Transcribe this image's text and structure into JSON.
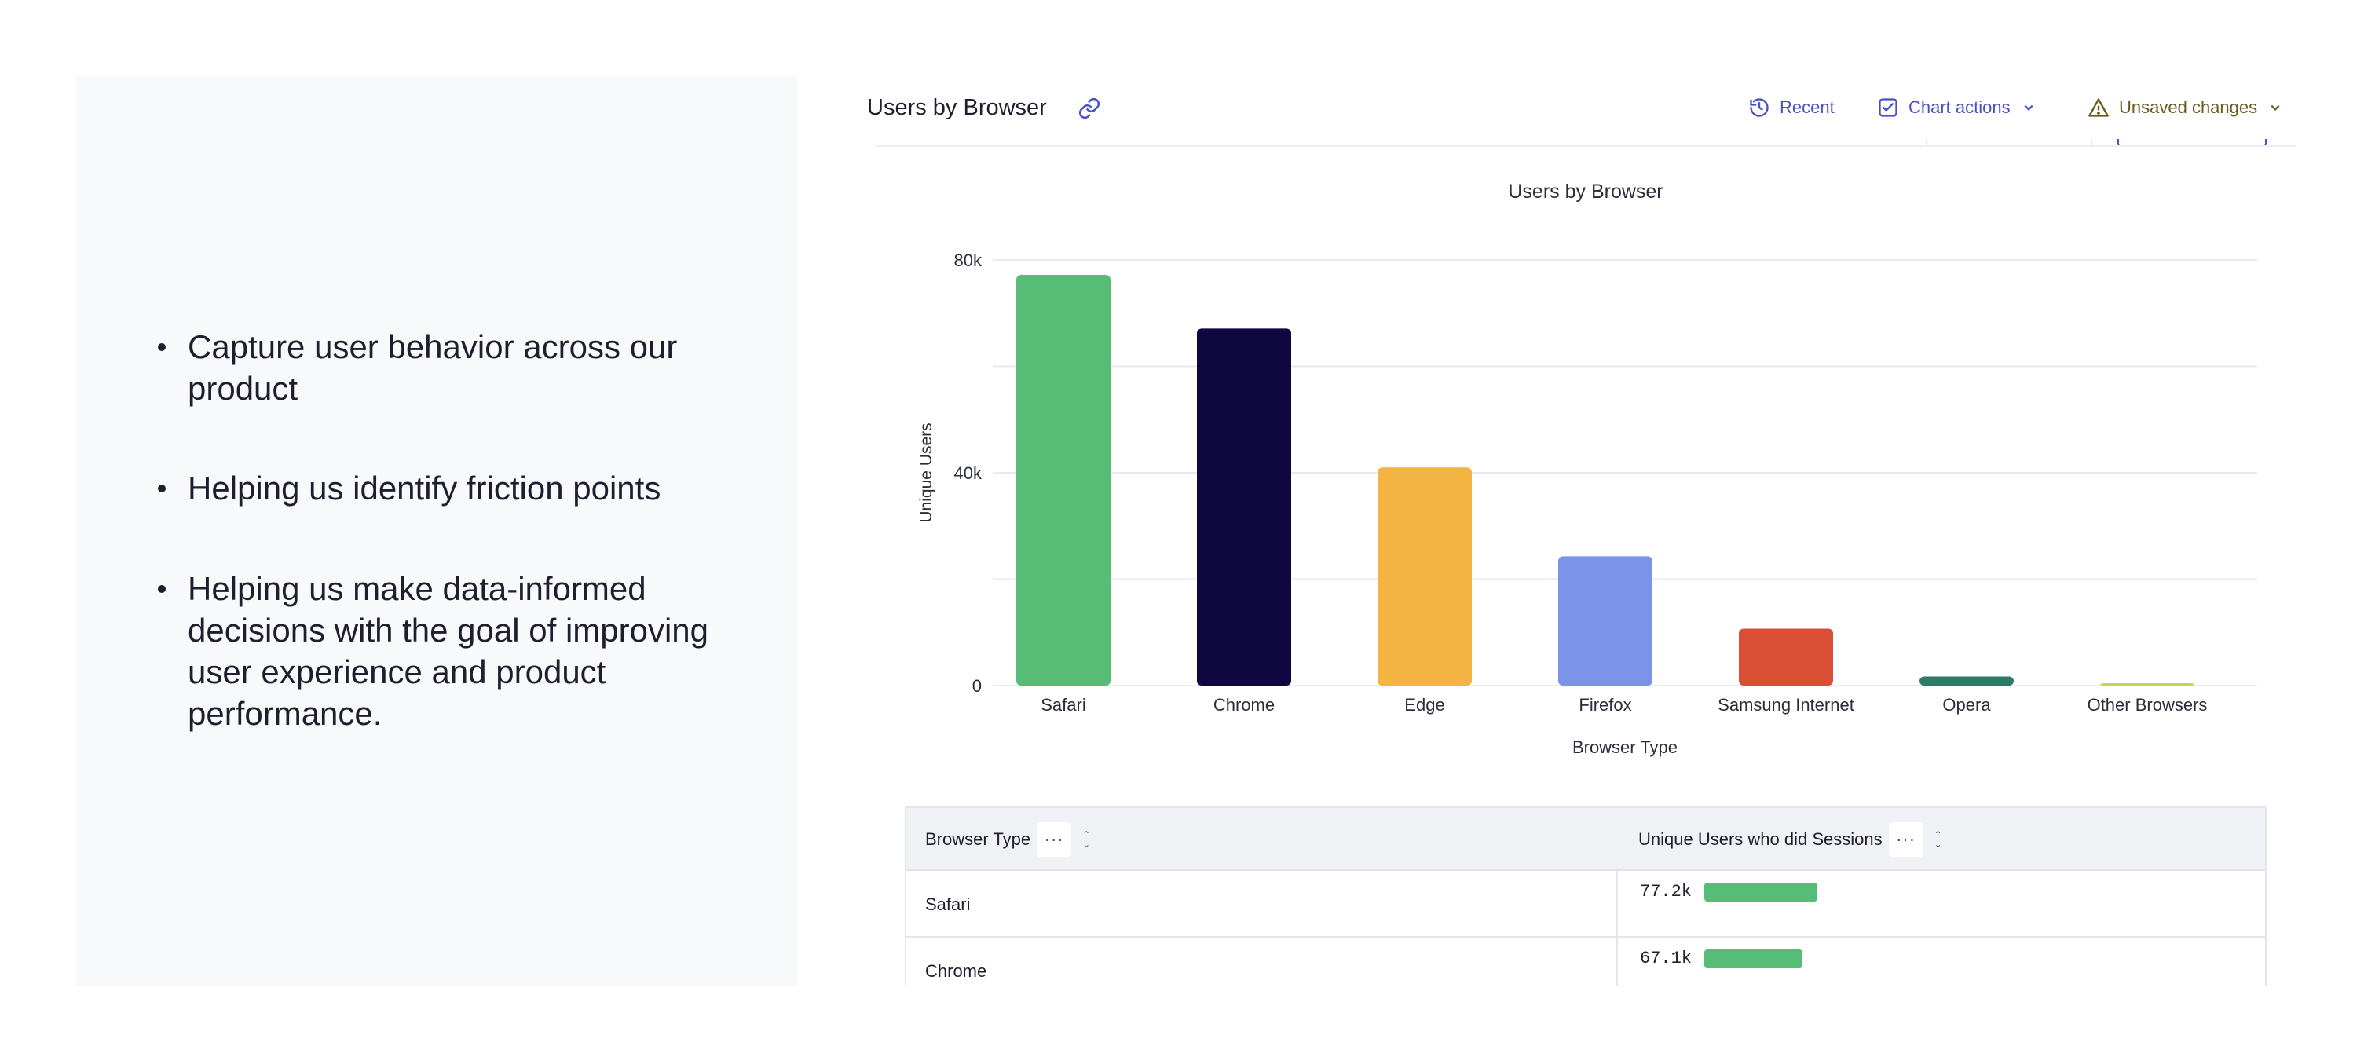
{
  "bullets": [
    "Capture user behavior across our product",
    "Helping us identify friction points",
    "Helping us make data-informed decisions with the goal of improving user experience and product performance."
  ],
  "header": {
    "title": "Users by Browser",
    "recent_label": "Recent",
    "chart_actions_label": "Chart actions",
    "unsaved_label": "Unsaved changes"
  },
  "colors": {
    "accent": "#4a4fc7",
    "warning": "#6b5a1c",
    "table_bar": "#57bd76"
  },
  "chart_data": {
    "type": "bar",
    "title": "Users by Browser",
    "xlabel": "Browser Type",
    "ylabel": "Unique Users",
    "ylim": [
      0,
      80000
    ],
    "yticks": [
      0,
      40000,
      80000
    ],
    "ytick_labels": [
      "0",
      "40k",
      "80k"
    ],
    "grid": true,
    "categories": [
      "Safari",
      "Chrome",
      "Edge",
      "Firefox",
      "Samsung Internet",
      "Opera",
      "Other Browsers"
    ],
    "values": [
      77200,
      67100,
      41000,
      24300,
      10700,
      1700,
      300
    ],
    "colors": [
      "#57bd76",
      "#0f0740",
      "#f4b443",
      "#7b93e8",
      "#db4e36",
      "#2e7a66",
      "#c9d64a"
    ]
  },
  "table": {
    "columns": [
      "Browser Type",
      "Unique Users who did Sessions"
    ],
    "menu_glyph": "···",
    "rows": [
      {
        "browser": "Safari",
        "value_label": "77.2k",
        "value": 77200
      },
      {
        "browser": "Chrome",
        "value_label": "67.1k",
        "value": 67100
      }
    ]
  }
}
